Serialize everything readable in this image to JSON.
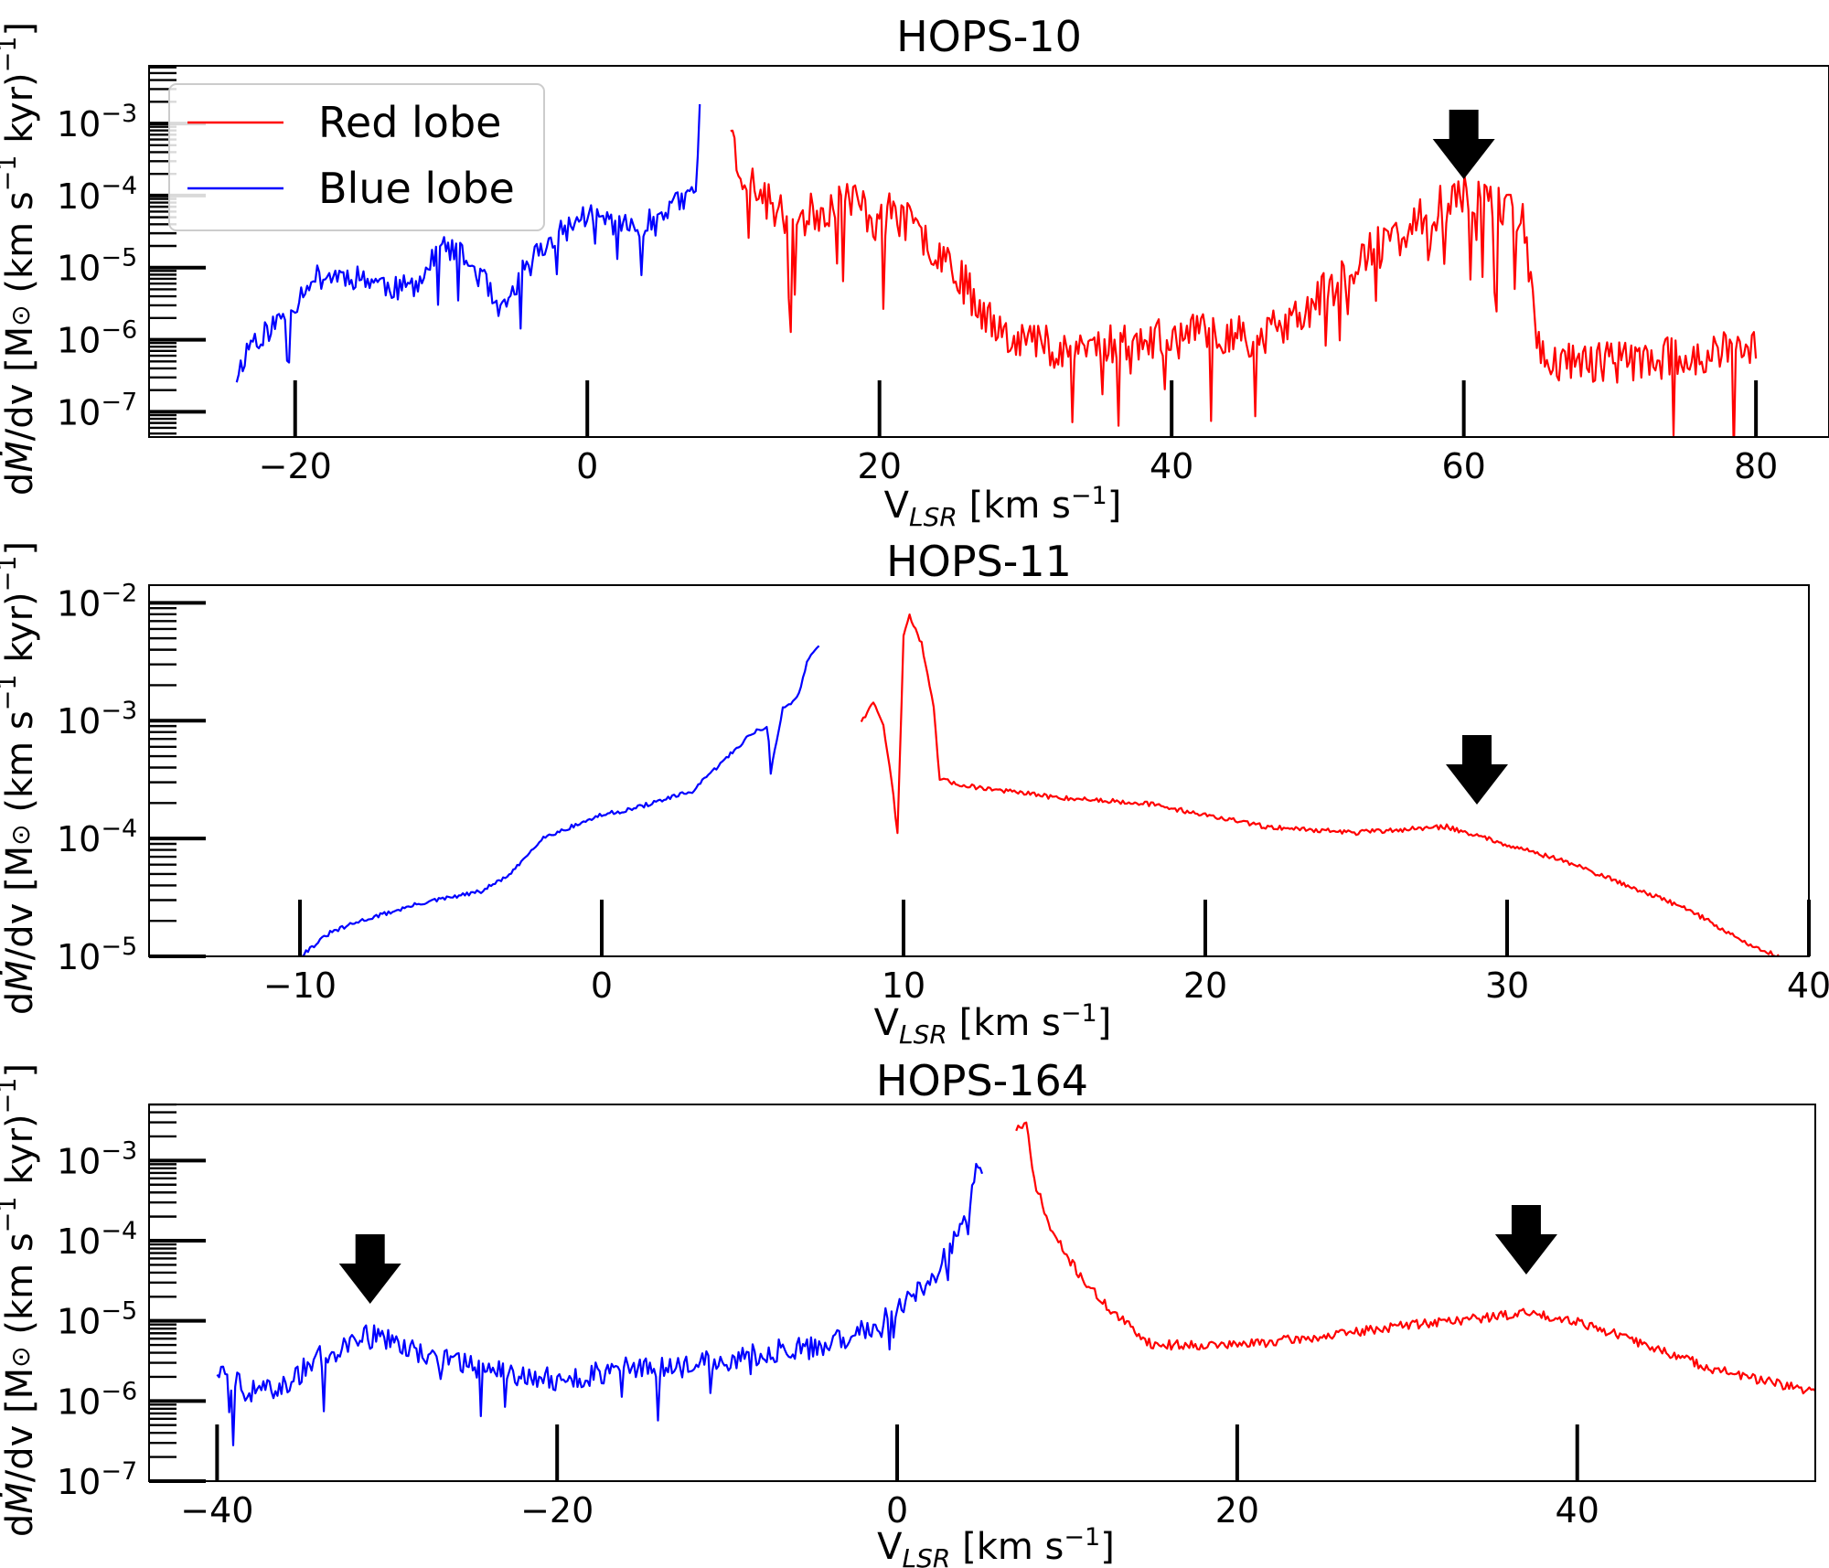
{
  "chart_data": [
    {
      "type": "line",
      "title": "HOPS-10",
      "xlabel": "V_LSR [km s^-1]",
      "ylabel": "dṀ/dv [M⊙ (km s^-1 kyr)^-1]",
      "yscale": "log",
      "xlim": [
        -30,
        85
      ],
      "ylim_log10": [
        -7.35,
        -2.2
      ],
      "x_ticks": [
        -20,
        0,
        20,
        40,
        60,
        80
      ],
      "x_tick_labels": [
        "−20",
        "0",
        "20",
        "40",
        "60",
        "80"
      ],
      "y_ticks_log10": [
        -7,
        -6,
        -5,
        -4,
        -3
      ],
      "y_tick_base": "10",
      "y_tick_exponents": [
        "−7",
        "−6",
        "−5",
        "−4",
        "−3"
      ],
      "legend": {
        "position": "top-left",
        "entries": [
          {
            "label": "Red lobe",
            "color": "#ff0000"
          },
          {
            "label": "Blue lobe",
            "color": "#0000ff"
          }
        ]
      },
      "arrows_x": [
        60
      ],
      "series": [
        {
          "name": "Blue lobe",
          "color": "#0000ff",
          "noise": 0.35,
          "seed": 11,
          "points": [
            [
              -24,
              -6.5
            ],
            [
              -23,
              -6.0
            ],
            [
              -22,
              -5.9
            ],
            [
              -21,
              -5.7
            ],
            [
              -20,
              -5.5
            ],
            [
              -19,
              -5.15
            ],
            [
              -17,
              -5.1
            ],
            [
              -15,
              -5.15
            ],
            [
              -13,
              -5.3
            ],
            [
              -12,
              -5.25
            ],
            [
              -11,
              -5.05
            ],
            [
              -10,
              -4.7
            ],
            [
              -8.5,
              -4.85
            ],
            [
              -7,
              -5.2
            ],
            [
              -6,
              -5.7
            ],
            [
              -5,
              -5.3
            ],
            [
              -4,
              -4.9
            ],
            [
              -2,
              -4.55
            ],
            [
              0,
              -4.25
            ],
            [
              1.5,
              -4.35
            ],
            [
              3,
              -4.45
            ],
            [
              4.5,
              -4.35
            ],
            [
              5.5,
              -4.15
            ],
            [
              6.5,
              -4.1
            ],
            [
              7.5,
              -3.9
            ],
            [
              7.7,
              -2.7
            ]
          ]
        },
        {
          "name": "Red lobe",
          "color": "#ff0000",
          "noise": 0.6,
          "seed": 23,
          "points": [
            [
              9.8,
              -2.95
            ],
            [
              10.2,
              -3.5
            ],
            [
              11,
              -3.8
            ],
            [
              12,
              -4.0
            ],
            [
              13,
              -4.25
            ],
            [
              15,
              -4.3
            ],
            [
              17,
              -4.1
            ],
            [
              18,
              -4.0
            ],
            [
              19,
              -4.2
            ],
            [
              20,
              -4.4
            ],
            [
              21,
              -4.2
            ],
            [
              23,
              -4.6
            ],
            [
              25,
              -4.9
            ],
            [
              26,
              -5.3
            ],
            [
              28,
              -5.8
            ],
            [
              30,
              -6.0
            ],
            [
              33,
              -6.1
            ],
            [
              36,
              -6.05
            ],
            [
              40,
              -6.0
            ],
            [
              43,
              -5.9
            ],
            [
              46,
              -5.95
            ],
            [
              48,
              -5.8
            ],
            [
              50,
              -5.45
            ],
            [
              52,
              -5.05
            ],
            [
              54,
              -4.75
            ],
            [
              56,
              -4.5
            ],
            [
              58,
              -4.2
            ],
            [
              60,
              -4.0
            ],
            [
              62,
              -4.05
            ],
            [
              63,
              -4.15
            ],
            [
              64,
              -4.3
            ],
            [
              64.5,
              -5.0
            ],
            [
              65,
              -6.1
            ],
            [
              66,
              -6.3
            ],
            [
              70,
              -6.3
            ],
            [
              75,
              -6.25
            ],
            [
              80,
              -6.1
            ]
          ]
        }
      ]
    },
    {
      "type": "line",
      "title": "HOPS-11",
      "xlabel": "V_LSR [km s^-1]",
      "ylabel": "dṀ/dv [M⊙ (km s^-1 kyr)^-1]",
      "yscale": "log",
      "xlim": [
        -15,
        40
      ],
      "ylim_log10": [
        -5,
        -1.85
      ],
      "x_ticks": [
        -10,
        0,
        10,
        20,
        30,
        40
      ],
      "x_tick_labels": [
        "−10",
        "0",
        "10",
        "20",
        "30",
        "40"
      ],
      "y_ticks_log10": [
        -5,
        -4,
        -3,
        -2
      ],
      "y_tick_base": "10",
      "y_tick_exponents": [
        "−5",
        "−4",
        "−3",
        "−2"
      ],
      "arrows_x": [
        29
      ],
      "series": [
        {
          "name": "Blue lobe",
          "color": "#0000ff",
          "noise": 0.035,
          "seed": 31,
          "points": [
            [
              -10,
              -5.0
            ],
            [
              -9,
              -4.8
            ],
            [
              -8,
              -4.7
            ],
            [
              -6,
              -4.55
            ],
            [
              -4,
              -4.45
            ],
            [
              -3,
              -4.3
            ],
            [
              -2,
              -4.0
            ],
            [
              0,
              -3.8
            ],
            [
              1,
              -3.75
            ],
            [
              3,
              -3.6
            ],
            [
              4,
              -3.35
            ],
            [
              5,
              -3.1
            ],
            [
              5.5,
              -3.05
            ],
            [
              5.6,
              -3.45
            ],
            [
              5.7,
              -3.3
            ],
            [
              6,
              -2.9
            ],
            [
              6.5,
              -2.8
            ],
            [
              6.8,
              -2.5
            ],
            [
              7.2,
              -2.35
            ]
          ]
        },
        {
          "name": "Red lobe",
          "color": "#ff0000",
          "noise": 0.04,
          "seed": 47,
          "points": [
            [
              8.6,
              -3.0
            ],
            [
              9,
              -2.85
            ],
            [
              9.3,
              -3.0
            ],
            [
              9.6,
              -3.5
            ],
            [
              9.8,
              -3.95
            ],
            [
              10,
              -2.3
            ],
            [
              10.2,
              -2.1
            ],
            [
              10.6,
              -2.35
            ],
            [
              11,
              -2.9
            ],
            [
              11.2,
              -3.5
            ],
            [
              12,
              -3.55
            ],
            [
              15,
              -3.65
            ],
            [
              18,
              -3.7
            ],
            [
              20,
              -3.8
            ],
            [
              22,
              -3.9
            ],
            [
              25,
              -3.95
            ],
            [
              28,
              -3.9
            ],
            [
              30,
              -4.05
            ],
            [
              32,
              -4.2
            ],
            [
              34,
              -4.4
            ],
            [
              36,
              -4.6
            ],
            [
              38,
              -4.9
            ],
            [
              39,
              -5.0
            ]
          ]
        }
      ]
    },
    {
      "type": "line",
      "title": "HOPS-164",
      "xlabel": "V_LSR [km s^-1]",
      "ylabel": "dṀ/dv [M⊙ (km s^-1 kyr)^-1]",
      "yscale": "log",
      "xlim": [
        -44,
        54
      ],
      "ylim_log10": [
        -7,
        -2.3
      ],
      "x_ticks": [
        -40,
        -20,
        0,
        20,
        40
      ],
      "x_tick_labels": [
        "−40",
        "−20",
        "0",
        "20",
        "40"
      ],
      "y_ticks_log10": [
        -7,
        -6,
        -5,
        -4,
        -3
      ],
      "y_tick_base": "10",
      "y_tick_exponents": [
        "−7",
        "−6",
        "−5",
        "−4",
        "−3"
      ],
      "arrows_x": [
        -31,
        37
      ],
      "series": [
        {
          "name": "Blue lobe",
          "color": "#0000ff",
          "noise": 0.3,
          "seed": 59,
          "points": [
            [
              -40,
              -5.6
            ],
            [
              -38,
              -5.9
            ],
            [
              -36,
              -5.8
            ],
            [
              -34,
              -5.45
            ],
            [
              -32,
              -5.2
            ],
            [
              -30,
              -5.2
            ],
            [
              -28,
              -5.4
            ],
            [
              -24,
              -5.6
            ],
            [
              -20,
              -5.75
            ],
            [
              -16,
              -5.6
            ],
            [
              -12,
              -5.55
            ],
            [
              -8,
              -5.4
            ],
            [
              -4,
              -5.3
            ],
            [
              -2,
              -5.1
            ],
            [
              0,
              -4.9
            ],
            [
              2,
              -4.5
            ],
            [
              3,
              -4.15
            ],
            [
              4,
              -3.6
            ],
            [
              4.5,
              -3.2
            ],
            [
              5,
              -3.05
            ]
          ]
        },
        {
          "name": "Red lobe",
          "color": "#ff0000",
          "noise": 0.12,
          "seed": 71,
          "points": [
            [
              7,
              -2.6
            ],
            [
              7.6,
              -2.55
            ],
            [
              8,
              -3.2
            ],
            [
              9,
              -3.85
            ],
            [
              10,
              -4.2
            ],
            [
              11,
              -4.5
            ],
            [
              12,
              -4.75
            ],
            [
              13,
              -4.95
            ],
            [
              15,
              -5.3
            ],
            [
              20,
              -5.3
            ],
            [
              25,
              -5.2
            ],
            [
              30,
              -5.05
            ],
            [
              35,
              -4.95
            ],
            [
              37,
              -4.9
            ],
            [
              40,
              -5.0
            ],
            [
              44,
              -5.3
            ],
            [
              48,
              -5.6
            ],
            [
              52,
              -5.8
            ],
            [
              54,
              -5.9
            ]
          ]
        }
      ]
    }
  ]
}
